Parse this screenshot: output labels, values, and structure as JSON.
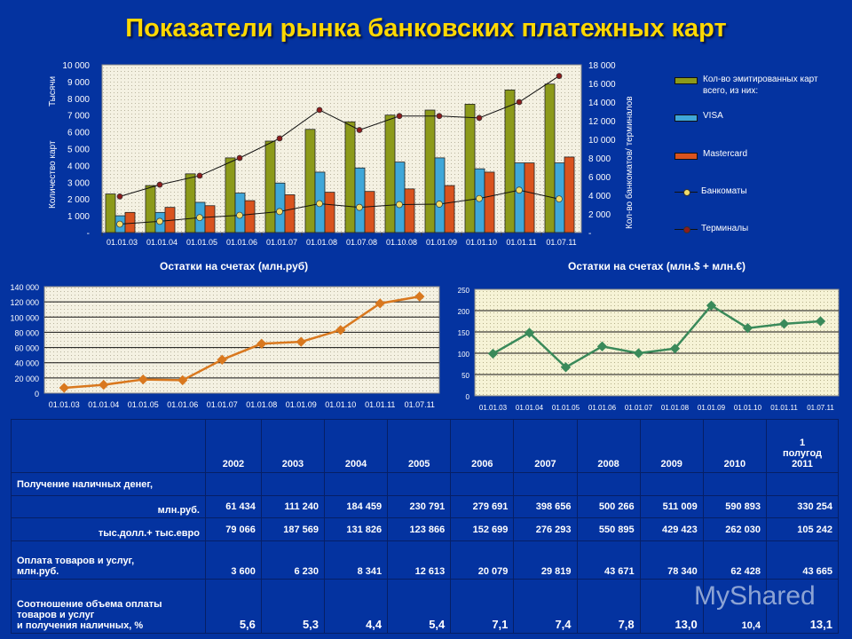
{
  "title": "Показатели рынка банковских платежных карт",
  "colors": {
    "background": "#0433a0",
    "title": "#ffd800",
    "issued": "#8c9a1a",
    "visa": "#3fa7d9",
    "mastercard": "#d9531e",
    "atm": "#f1dc6a",
    "terminal": "#8c1c1c",
    "rub_line": "#d9781e",
    "usd_line": "#3a8a5a"
  },
  "chart_data": [
    {
      "type": "bar+line",
      "categories": [
        "01.01.03",
        "01.01.04",
        "01.01.05",
        "01.01.06",
        "01.01.07",
        "01.01.08",
        "01.07.08",
        "01.10.08",
        "01.01.09",
        "01.01.10",
        "01.01.11",
        "01.07.11"
      ],
      "ylabel": "Количество карт",
      "ylabel_unit": "Тысячи",
      "y2label": "Кол-во банкоматов/ терминалов",
      "ylim": [
        0,
        10000
      ],
      "y2lim": [
        0,
        18000
      ],
      "yticks": [
        "-",
        "1 000",
        "2 000",
        "3 000",
        "4 000",
        "5 000",
        "6 000",
        "7 000",
        "8 000",
        "9 000",
        "10 000"
      ],
      "y2ticks": [
        "-",
        "2 000",
        "4 000",
        "6 000",
        "8 000",
        "10 000",
        "12 000",
        "14 000",
        "16 000",
        "18 000"
      ],
      "grid": true,
      "legend_position": "right",
      "series": [
        {
          "name": "Кол-во эмитированных карт всего, из них:",
          "kind": "bar",
          "axis": "left",
          "values": [
            2300,
            2800,
            3500,
            4450,
            5450,
            6150,
            6600,
            7000,
            7300,
            7650,
            8500,
            8850
          ]
        },
        {
          "name": "VISA",
          "kind": "bar",
          "axis": "left",
          "values": [
            1000,
            1200,
            1800,
            2350,
            2950,
            3600,
            3850,
            4200,
            4450,
            3800,
            4150,
            4150
          ]
        },
        {
          "name": "Mastercard",
          "kind": "bar",
          "axis": "left",
          "values": [
            1200,
            1500,
            1600,
            1900,
            2250,
            2400,
            2450,
            2600,
            2800,
            3600,
            4150,
            4500
          ]
        },
        {
          "name": "Банкоматы",
          "kind": "line",
          "axis": "right",
          "values": [
            900,
            1200,
            1600,
            1850,
            2250,
            3100,
            2700,
            3000,
            3050,
            3650,
            4550,
            3600
          ]
        },
        {
          "name": "Терминалы",
          "kind": "line",
          "axis": "right",
          "values": [
            3870,
            5130,
            6100,
            8000,
            10100,
            13150,
            11000,
            12500,
            12500,
            12300,
            14000,
            16800
          ]
        }
      ]
    },
    {
      "type": "line",
      "title": "Остатки на счетах (млн.руб)",
      "categories": [
        "01.01.03",
        "01.01.04",
        "01.01.05",
        "01.01.06",
        "01.01.07",
        "01.01.08",
        "01.01.09",
        "01.01.10",
        "01.01.11",
        "01.07.11"
      ],
      "ylim": [
        0,
        140000
      ],
      "yticks": [
        "0",
        "20 000",
        "40 000",
        "60 000",
        "80 000",
        "100 000",
        "120 000",
        "140 000"
      ],
      "grid": true,
      "values": [
        7000,
        11000,
        18000,
        17000,
        44000,
        65000,
        67500,
        83000,
        118000,
        127000
      ]
    },
    {
      "type": "line",
      "title": "Остатки на счетах (млн.$ + млн.€)",
      "categories": [
        "01.01.03",
        "01.01.04",
        "01.01.05",
        "01.01.06",
        "01.01.07",
        "01.01.08",
        "01.01.09",
        "01.01.10",
        "01.01.11",
        "01.07.11"
      ],
      "ylim": [
        0,
        250
      ],
      "yticks": [
        "0",
        "50",
        "100",
        "150",
        "200",
        "250"
      ],
      "grid": true,
      "values": [
        99,
        148,
        67,
        116,
        100,
        111,
        212,
        159,
        169,
        175
      ]
    }
  ],
  "table": {
    "headers": [
      "2002",
      "2003",
      "2004",
      "2005",
      "2006",
      "2007",
      "2008",
      "2009",
      "2010"
    ],
    "last_header": [
      "1",
      "полугод",
      "2011"
    ],
    "rows": [
      {
        "label": "Получение наличных денег,",
        "values": [
          "",
          "",
          "",
          "",
          "",
          "",
          "",
          "",
          "",
          ""
        ]
      },
      {
        "label": "млн.руб.",
        "values": [
          "61 434",
          "111 240",
          "184 459",
          "230 791",
          "279 691",
          "398 656",
          "500 266",
          "511 009",
          "590 893",
          "330 254"
        ]
      },
      {
        "label": "тыс.долл.+ тыс.евро",
        "values": [
          "79 066",
          "187 569",
          "131 826",
          "123 866",
          "152 699",
          "276 293",
          "550 895",
          "429 423",
          "262 030",
          "105 242"
        ]
      },
      {
        "label": "Оплата товаров и услуг,",
        "label2": "млн.руб.",
        "values": [
          "3 600",
          "6 230",
          "8 341",
          "12 613",
          "20 079",
          "29 819",
          "43 671",
          "78 340",
          "62 428",
          "43 665"
        ]
      },
      {
        "label": "Соотношение объема оплаты",
        "label2": "товаров и услуг",
        "label3": "и получения наличных,     %",
        "values": [
          "5,6",
          "5,3",
          "4,4",
          "5,4",
          "7,1",
          "7,4",
          "7,8",
          "13,0",
          "10,4",
          "13,1"
        ]
      }
    ]
  },
  "watermark": "MyShared"
}
